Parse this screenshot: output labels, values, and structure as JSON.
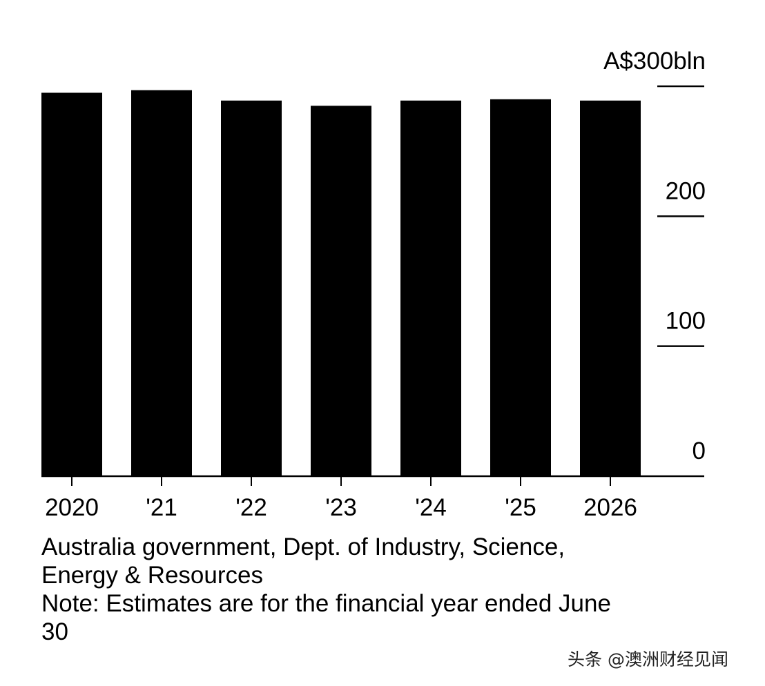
{
  "chart_data": {
    "type": "bar",
    "categories": [
      "2020",
      "'21",
      "'22",
      "'23",
      "'24",
      "'25",
      "2026"
    ],
    "values": [
      295,
      297,
      289,
      285,
      289,
      290,
      289
    ],
    "y_unit_label": "A$300bln",
    "y_ticks": [
      {
        "value": 0,
        "label": "0"
      },
      {
        "value": 100,
        "label": "100"
      },
      {
        "value": 200,
        "label": "200"
      },
      {
        "value": 300,
        "label": "A$300bln"
      }
    ],
    "ylim": [
      0,
      300
    ],
    "title": "",
    "xlabel": "",
    "ylabel": "",
    "grid": false,
    "axis_side": "right",
    "bar_color": "#000000"
  },
  "source": {
    "lines": [
      "Australia government, Dept. of Industry, Science,",
      "Energy & Resources"
    ],
    "note_lines": [
      "Note: Estimates are for the financial year ended June",
      "30"
    ]
  },
  "watermark": "头条 @澳洲财经见闻"
}
